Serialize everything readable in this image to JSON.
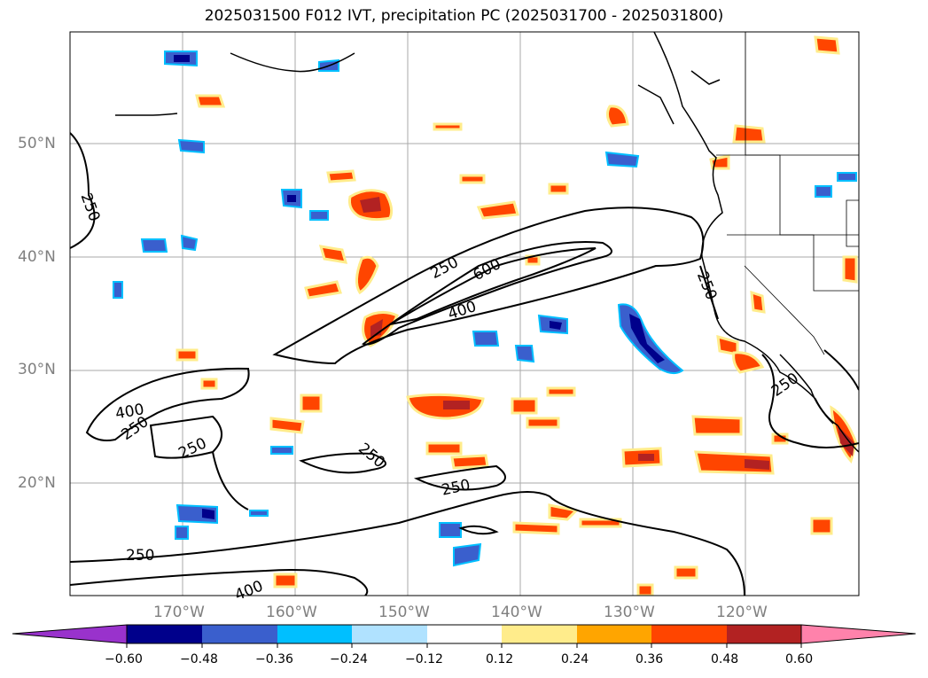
{
  "title": "2025031500 F012 IVT, precipitation PC (2025031700 - 2025031800)",
  "map": {
    "lat_ticks": [
      "50°N",
      "40°N",
      "30°N",
      "20°N"
    ],
    "lon_ticks": [
      "170°W",
      "160°W",
      "150°W",
      "140°W",
      "130°W",
      "120°W"
    ],
    "contour_labels": [
      "250",
      "250",
      "600",
      "400",
      "250",
      "250",
      "400",
      "250",
      "250",
      "250",
      "250",
      "250",
      "400"
    ],
    "colors": {
      "contour": "#000000",
      "grid": "#aaaaaa",
      "coast": "#000000"
    }
  },
  "colorbar": {
    "ticks": [
      "−0.60",
      "−0.48",
      "−0.36",
      "−0.24",
      "−0.12",
      "0.12",
      "0.24",
      "0.36",
      "0.48",
      "0.60"
    ],
    "colors": [
      "#9932cc",
      "#00008b",
      "#3a5fcd",
      "#00bfff",
      "#b0e2ff",
      "#ffffff",
      "#ffec8b",
      "#ffa500",
      "#ff4500",
      "#b22222",
      "#ff82ab"
    ]
  }
}
